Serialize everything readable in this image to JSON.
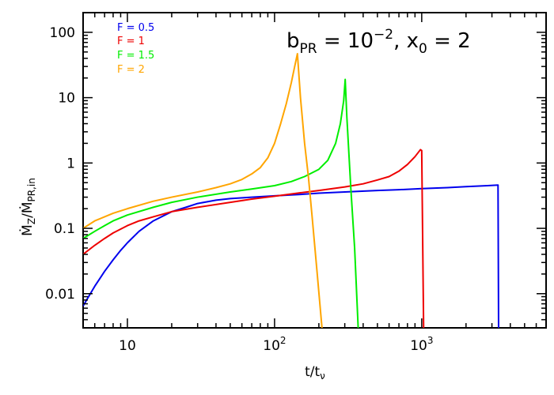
{
  "chart_data": {
    "type": "line",
    "title": "",
    "annotation": {
      "parts": [
        "b",
        "PR",
        " = 10",
        "−2",
        ", x",
        "0",
        " = 2"
      ]
    },
    "xlabel": {
      "main": "t/t",
      "sub": "ν"
    },
    "ylabel": {
      "main_top": "Ṁ",
      "sub_top": "Z",
      "slash": "/",
      "main_bottom": "Ṁ",
      "sub_bottom": "PR,in"
    },
    "xscale": "log",
    "yscale": "log",
    "xlim": [
      5,
      7000
    ],
    "ylim": [
      0.003,
      200
    ],
    "x_ticks": [
      {
        "value": 10,
        "base": "10",
        "exp": ""
      },
      {
        "value": 100,
        "base": "10",
        "exp": "2"
      },
      {
        "value": 1000,
        "base": "10",
        "exp": "3"
      }
    ],
    "y_ticks": [
      {
        "value": 0.01,
        "label": "0.01"
      },
      {
        "value": 0.1,
        "label": "0.1"
      },
      {
        "value": 1,
        "label": "1"
      },
      {
        "value": 10,
        "label": "10"
      },
      {
        "value": 100,
        "label": "100"
      }
    ],
    "legend_position": "top-left",
    "series": [
      {
        "name": "F = 0.5",
        "color": "#0000ee",
        "points": [
          [
            5,
            0.0065
          ],
          [
            6,
            0.013
          ],
          [
            7,
            0.022
          ],
          [
            8,
            0.033
          ],
          [
            9,
            0.046
          ],
          [
            10,
            0.06
          ],
          [
            12,
            0.09
          ],
          [
            15,
            0.13
          ],
          [
            20,
            0.18
          ],
          [
            25,
            0.21
          ],
          [
            30,
            0.24
          ],
          [
            40,
            0.27
          ],
          [
            50,
            0.285
          ],
          [
            70,
            0.3
          ],
          [
            100,
            0.315
          ],
          [
            150,
            0.33
          ],
          [
            200,
            0.345
          ],
          [
            300,
            0.36
          ],
          [
            500,
            0.38
          ],
          [
            700,
            0.39
          ],
          [
            1000,
            0.405
          ],
          [
            1500,
            0.42
          ],
          [
            2000,
            0.435
          ],
          [
            2800,
            0.45
          ],
          [
            3300,
            0.46
          ],
          [
            3330,
            0.003
          ]
        ]
      },
      {
        "name": "F = 1",
        "color": "#ee0000",
        "points": [
          [
            5,
            0.04
          ],
          [
            6,
            0.055
          ],
          [
            7,
            0.07
          ],
          [
            8,
            0.085
          ],
          [
            10,
            0.11
          ],
          [
            12,
            0.13
          ],
          [
            15,
            0.15
          ],
          [
            20,
            0.18
          ],
          [
            30,
            0.21
          ],
          [
            50,
            0.25
          ],
          [
            70,
            0.28
          ],
          [
            100,
            0.31
          ],
          [
            150,
            0.35
          ],
          [
            200,
            0.38
          ],
          [
            300,
            0.43
          ],
          [
            400,
            0.48
          ],
          [
            500,
            0.55
          ],
          [
            600,
            0.62
          ],
          [
            700,
            0.75
          ],
          [
            800,
            0.95
          ],
          [
            900,
            1.25
          ],
          [
            980,
            1.6
          ],
          [
            1000,
            1.55
          ],
          [
            1030,
            0.003
          ]
        ]
      },
      {
        "name": "F = 1.5",
        "color": "#00ee00",
        "points": [
          [
            5,
            0.07
          ],
          [
            6,
            0.09
          ],
          [
            7,
            0.11
          ],
          [
            8,
            0.13
          ],
          [
            10,
            0.16
          ],
          [
            15,
            0.21
          ],
          [
            20,
            0.25
          ],
          [
            30,
            0.3
          ],
          [
            50,
            0.36
          ],
          [
            70,
            0.4
          ],
          [
            100,
            0.45
          ],
          [
            130,
            0.52
          ],
          [
            160,
            0.62
          ],
          [
            200,
            0.8
          ],
          [
            230,
            1.1
          ],
          [
            260,
            2.0
          ],
          [
            280,
            4.0
          ],
          [
            295,
            9.0
          ],
          [
            302,
            19.0
          ],
          [
            310,
            5.0
          ],
          [
            330,
            0.4
          ],
          [
            350,
            0.05
          ],
          [
            370,
            0.003
          ]
        ]
      },
      {
        "name": "F = 2",
        "color": "#ffa500",
        "points": [
          [
            5,
            0.1
          ],
          [
            6,
            0.13
          ],
          [
            7,
            0.15
          ],
          [
            8,
            0.17
          ],
          [
            10,
            0.2
          ],
          [
            15,
            0.26
          ],
          [
            20,
            0.3
          ],
          [
            30,
            0.36
          ],
          [
            40,
            0.42
          ],
          [
            50,
            0.48
          ],
          [
            60,
            0.56
          ],
          [
            70,
            0.68
          ],
          [
            80,
            0.85
          ],
          [
            90,
            1.2
          ],
          [
            100,
            2.0
          ],
          [
            110,
            4.0
          ],
          [
            120,
            8.0
          ],
          [
            130,
            17.0
          ],
          [
            137,
            30.0
          ],
          [
            143,
            47.0
          ],
          [
            150,
            10.0
          ],
          [
            160,
            2.0
          ],
          [
            170,
            0.6
          ],
          [
            180,
            0.15
          ],
          [
            195,
            0.02
          ],
          [
            210,
            0.003
          ]
        ]
      }
    ]
  }
}
